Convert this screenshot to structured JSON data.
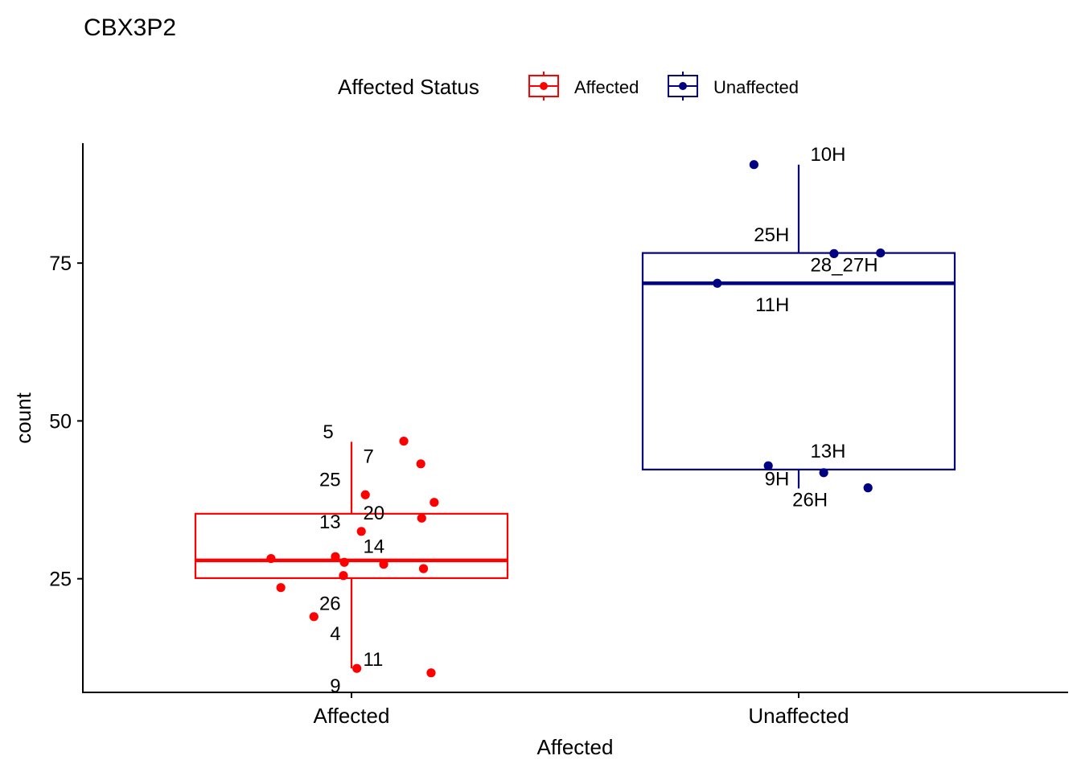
{
  "chart_data": {
    "type": "boxplot",
    "title": "CBX3P2",
    "xlabel": "Affected",
    "ylabel": "count",
    "ylim": [
      7,
      94
    ],
    "yticks": [
      25,
      50,
      75
    ],
    "categories": [
      "Affected",
      "Unaffected"
    ],
    "legend": {
      "title": "Affected Status",
      "position": "top",
      "entries": [
        "Affected",
        "Unaffected"
      ]
    },
    "colors": {
      "Affected": "#ff0000",
      "Unaffected": "#000080"
    },
    "grid": false,
    "boxes": [
      {
        "group": "Affected",
        "min": 10.8,
        "q1": 25.1,
        "median": 27.9,
        "q3": 35.3,
        "max": 46.7
      },
      {
        "group": "Unaffected",
        "min": 39.3,
        "q1": 42.3,
        "median": 71.8,
        "q3": 76.6,
        "max": 90.6
      }
    ],
    "points": [
      {
        "group": "Affected",
        "y": 46.8,
        "jitter": 0.117
      },
      {
        "group": "Affected",
        "y": 43.2,
        "jitter": 0.155
      },
      {
        "group": "Affected",
        "y": 38.3,
        "jitter": 0.031
      },
      {
        "group": "Affected",
        "y": 37.1,
        "jitter": 0.185
      },
      {
        "group": "Affected",
        "y": 34.6,
        "jitter": 0.157
      },
      {
        "group": "Affected",
        "y": 32.5,
        "jitter": 0.022
      },
      {
        "group": "Affected",
        "y": 28.2,
        "jitter": -0.18
      },
      {
        "group": "Affected",
        "y": 28.5,
        "jitter": -0.036
      },
      {
        "group": "Affected",
        "y": 27.6,
        "jitter": -0.016
      },
      {
        "group": "Affected",
        "y": 27.3,
        "jitter": 0.072
      },
      {
        "group": "Affected",
        "y": 26.6,
        "jitter": 0.161
      },
      {
        "group": "Affected",
        "y": 25.5,
        "jitter": -0.018
      },
      {
        "group": "Affected",
        "y": 23.6,
        "jitter": -0.158
      },
      {
        "group": "Affected",
        "y": 19.0,
        "jitter": -0.084
      },
      {
        "group": "Affected",
        "y": 10.8,
        "jitter": 0.012
      },
      {
        "group": "Affected",
        "y": 10.1,
        "jitter": 0.178
      },
      {
        "group": "Unaffected",
        "y": 90.6,
        "jitter": -0.1
      },
      {
        "group": "Unaffected",
        "y": 76.5,
        "jitter": 0.079
      },
      {
        "group": "Unaffected",
        "y": 76.6,
        "jitter": 0.183
      },
      {
        "group": "Unaffected",
        "y": 71.8,
        "jitter": -0.182
      },
      {
        "group": "Unaffected",
        "y": 42.9,
        "jitter": -0.068
      },
      {
        "group": "Unaffected",
        "y": 41.8,
        "jitter": 0.056
      },
      {
        "group": "Unaffected",
        "y": 39.4,
        "jitter": 0.155
      }
    ],
    "annotations": [
      {
        "group": "Affected",
        "text": "5",
        "y": 48.3,
        "jitter": -0.04,
        "anchor": "end"
      },
      {
        "group": "Affected",
        "text": "7",
        "y": 44.4,
        "jitter": 0.026,
        "anchor": "start"
      },
      {
        "group": "Affected",
        "text": "25",
        "y": 40.7,
        "jitter": -0.024,
        "anchor": "end"
      },
      {
        "group": "Affected",
        "text": "20",
        "y": 35.4,
        "jitter": 0.026,
        "anchor": "start"
      },
      {
        "group": "Affected",
        "text": "13",
        "y": 34.0,
        "jitter": -0.024,
        "anchor": "end"
      },
      {
        "group": "Affected",
        "text": "14",
        "y": 30.1,
        "jitter": 0.026,
        "anchor": "start"
      },
      {
        "group": "Affected",
        "text": "26",
        "y": 21.1,
        "jitter": -0.024,
        "anchor": "end"
      },
      {
        "group": "Affected",
        "text": "4",
        "y": 16.3,
        "jitter": -0.024,
        "anchor": "end"
      },
      {
        "group": "Affected",
        "text": "11",
        "y": 12.2,
        "jitter": 0.026,
        "anchor": "start"
      },
      {
        "group": "Affected",
        "text": "9",
        "y": 8.0,
        "jitter": -0.024,
        "anchor": "end"
      },
      {
        "group": "Unaffected",
        "text": "10H",
        "y": 92.2,
        "jitter": 0.026,
        "anchor": "start"
      },
      {
        "group": "Unaffected",
        "text": "25H",
        "y": 79.5,
        "jitter": -0.021,
        "anchor": "end"
      },
      {
        "group": "Unaffected",
        "text": "28_27H",
        "y": 74.7,
        "jitter": 0.026,
        "anchor": "start"
      },
      {
        "group": "Unaffected",
        "text": "11H",
        "y": 68.4,
        "jitter": -0.021,
        "anchor": "end"
      },
      {
        "group": "Unaffected",
        "text": "13H",
        "y": 45.2,
        "jitter": 0.026,
        "anchor": "start"
      },
      {
        "group": "Unaffected",
        "text": "9H",
        "y": 40.8,
        "jitter": -0.021,
        "anchor": "end"
      },
      {
        "group": "Unaffected",
        "text": "26H",
        "y": 37.5,
        "jitter": 0.065,
        "anchor": "end"
      }
    ]
  }
}
